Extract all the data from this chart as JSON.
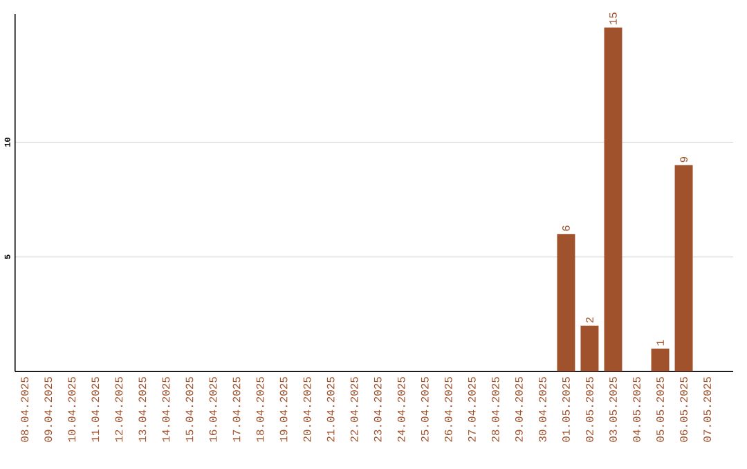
{
  "chart_data": {
    "type": "bar",
    "categories": [
      "08.04.2025",
      "09.04.2025",
      "10.04.2025",
      "11.04.2025",
      "12.04.2025",
      "13.04.2025",
      "14.04.2025",
      "15.04.2025",
      "16.04.2025",
      "17.04.2025",
      "18.04.2025",
      "19.04.2025",
      "20.04.2025",
      "21.04.2025",
      "22.04.2025",
      "23.04.2025",
      "24.04.2025",
      "25.04.2025",
      "26.04.2025",
      "27.04.2025",
      "28.04.2025",
      "29.04.2025",
      "30.04.2025",
      "01.05.2025",
      "02.05.2025",
      "03.05.2025",
      "04.05.2025",
      "05.05.2025",
      "06.05.2025",
      "07.05.2025"
    ],
    "values": [
      0,
      0,
      0,
      0,
      0,
      0,
      0,
      0,
      0,
      0,
      0,
      0,
      0,
      0,
      0,
      0,
      0,
      0,
      0,
      0,
      0,
      0,
      0,
      6,
      2,
      15,
      0,
      1,
      9,
      0
    ],
    "value_labels": [
      null,
      null,
      null,
      null,
      null,
      null,
      null,
      null,
      null,
      null,
      null,
      null,
      null,
      null,
      null,
      null,
      null,
      null,
      null,
      null,
      null,
      null,
      null,
      "6",
      "2",
      "15",
      null,
      "1",
      "9",
      null
    ],
    "color": "#a0522d",
    "ylim": [
      0,
      15.6
    ],
    "yticks": [
      5,
      10
    ],
    "grid": "y"
  }
}
